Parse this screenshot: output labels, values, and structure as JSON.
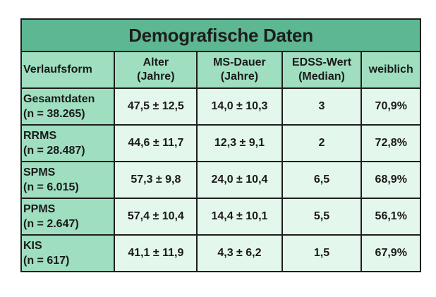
{
  "title": "Demografische Daten",
  "headers": {
    "verlaufsform": "Verlaufsform",
    "alter_1": "Alter",
    "alter_2": "(Jahre)",
    "dauer_1": "MS-Dauer",
    "dauer_2": "(Jahre)",
    "edss_1": "EDSS-Wert",
    "edss_2": "(Median)",
    "weiblich": "weiblich"
  },
  "rows": [
    {
      "name": "Gesamtdaten",
      "n": "(n = 38.265)",
      "alter": "47,5 ± 12,5",
      "dauer": "14,0 ± 10,3",
      "edss": "3",
      "weiblich": "70,9%"
    },
    {
      "name": "RRMS",
      "n": "(n = 28.487)",
      "alter": "44,6 ± 11,7",
      "dauer": "12,3 ± 9,1",
      "edss": "2",
      "weiblich": "72,8%"
    },
    {
      "name": "SPMS",
      "n": "(n = 6.015)",
      "alter": "57,3 ± 9,8",
      "dauer": "24,0 ± 10,4",
      "edss": "6,5",
      "weiblich": "68,9%"
    },
    {
      "name": "PPMS",
      "n": "(n = 2.647)",
      "alter": "57,4 ± 10,4",
      "dauer": "14,4 ± 10,1",
      "edss": "5,5",
      "weiblich": "56,1%"
    },
    {
      "name": "KIS",
      "n": "(n = 617)",
      "alter": "41,1 ± 11,9",
      "dauer": "4,3 ± 6,2",
      "edss": "1,5",
      "weiblich": "67,9%"
    }
  ],
  "colors": {
    "title_bg": "#5db792",
    "header_bg": "#9fdfc0",
    "cell_bg": "#e4f7ec"
  }
}
